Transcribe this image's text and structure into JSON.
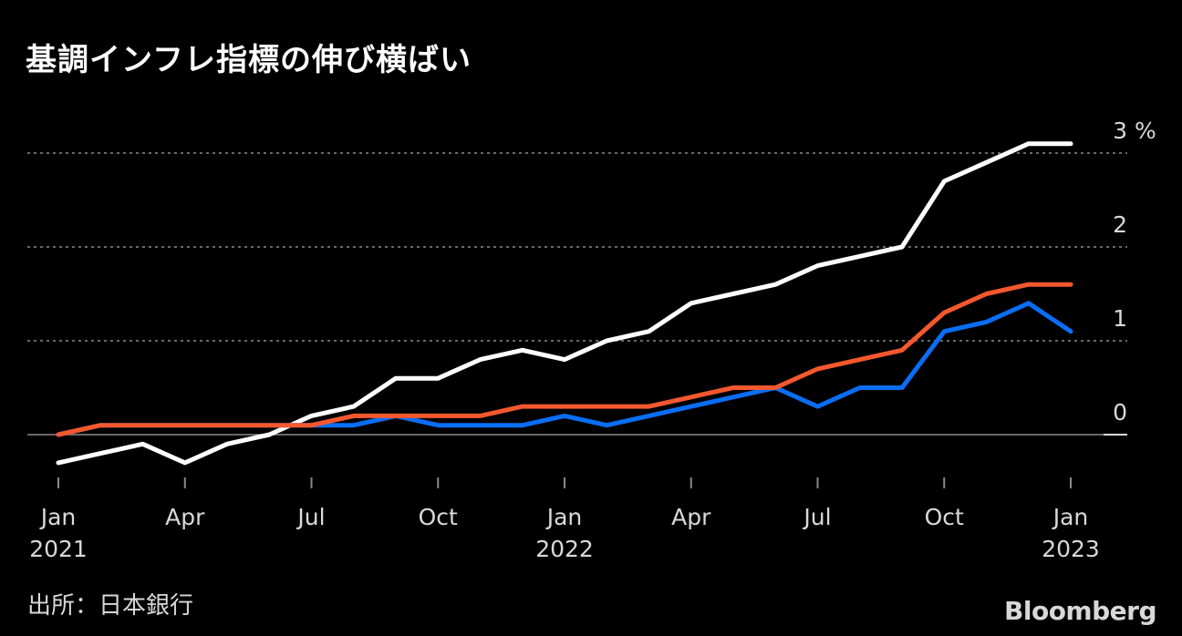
{
  "title": "基調インフレ指標の伸び横ばい",
  "source": "出所：日本銀行",
  "logo": "Bloomberg",
  "colors": {
    "background": "#000000",
    "white_series": "#ffffff",
    "orange_series": "#f4582e",
    "blue_series": "#0a6ef5",
    "grid": "#8a8a8a",
    "text": "#d9d9d9"
  },
  "chart_data": {
    "type": "line",
    "title": "基調インフレ指標の伸び横ばい",
    "xlabel": "",
    "ylabel": "%",
    "ylim": [
      -0.5,
      3.3
    ],
    "yticks": [
      {
        "value": 0,
        "label": "0"
      },
      {
        "value": 1,
        "label": "1"
      },
      {
        "value": 2,
        "label": "2"
      },
      {
        "value": 3,
        "label": "3"
      }
    ],
    "yunit": "%",
    "x": [
      "2021-01",
      "2021-02",
      "2021-03",
      "2021-04",
      "2021-05",
      "2021-06",
      "2021-07",
      "2021-08",
      "2021-09",
      "2021-10",
      "2021-11",
      "2021-12",
      "2022-01",
      "2022-02",
      "2022-03",
      "2022-04",
      "2022-05",
      "2022-06",
      "2022-07",
      "2022-08",
      "2022-09",
      "2022-10",
      "2022-11",
      "2022-12",
      "2023-01"
    ],
    "xticks": [
      {
        "index": 0,
        "label": "Jan",
        "sublabel": "2021"
      },
      {
        "index": 3,
        "label": "Apr",
        "sublabel": ""
      },
      {
        "index": 6,
        "label": "Jul",
        "sublabel": ""
      },
      {
        "index": 9,
        "label": "Oct",
        "sublabel": ""
      },
      {
        "index": 12,
        "label": "Jan",
        "sublabel": "2022"
      },
      {
        "index": 15,
        "label": "Apr",
        "sublabel": ""
      },
      {
        "index": 18,
        "label": "Jul",
        "sublabel": ""
      },
      {
        "index": 21,
        "label": "Oct",
        "sublabel": ""
      },
      {
        "index": 24,
        "label": "Jan",
        "sublabel": "2023"
      }
    ],
    "series": [
      {
        "name": "white",
        "color": "#ffffff",
        "values": [
          -0.3,
          -0.2,
          -0.1,
          -0.3,
          -0.1,
          0.0,
          0.2,
          0.3,
          0.6,
          0.6,
          0.8,
          0.9,
          0.8,
          1.0,
          1.1,
          1.4,
          1.5,
          1.6,
          1.8,
          1.9,
          2.0,
          2.7,
          2.9,
          3.1,
          3.1
        ]
      },
      {
        "name": "blue",
        "color": "#0a6ef5",
        "values": [
          0.0,
          0.1,
          0.1,
          0.1,
          0.1,
          0.1,
          0.1,
          0.1,
          0.2,
          0.1,
          0.1,
          0.1,
          0.2,
          0.1,
          0.2,
          0.3,
          0.4,
          0.5,
          0.3,
          0.5,
          0.5,
          1.1,
          1.2,
          1.4,
          1.1
        ]
      },
      {
        "name": "orange",
        "color": "#f4582e",
        "values": [
          0.0,
          0.1,
          0.1,
          0.1,
          0.1,
          0.1,
          0.1,
          0.2,
          0.2,
          0.2,
          0.2,
          0.3,
          0.3,
          0.3,
          0.3,
          0.4,
          0.5,
          0.5,
          0.7,
          0.8,
          0.9,
          1.3,
          1.5,
          1.6,
          1.6
        ]
      }
    ]
  }
}
